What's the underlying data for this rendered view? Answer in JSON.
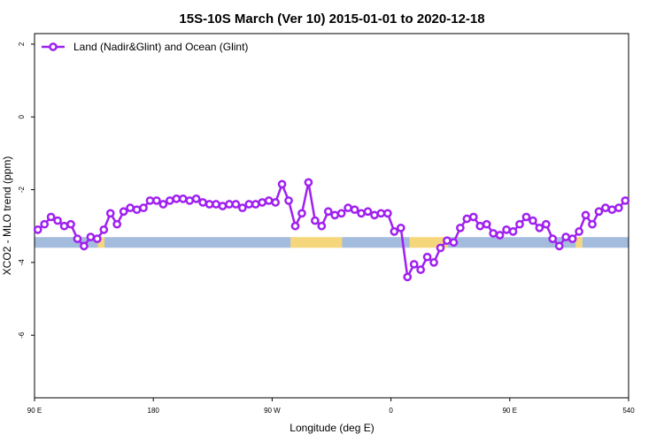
{
  "chart_data": {
    "type": "line",
    "title": "15S-10S March (Ver 10)   2015-01-01 to 2020-12-18",
    "x_label": "Longitude (deg E)",
    "y_label": "XCO2 - MLO trend (ppm)",
    "xlim": [
      90,
      540
    ],
    "ylim": [
      -7.72,
      2.29
    ],
    "xticks": [
      {
        "value": 90,
        "label": "90 E"
      },
      180,
      {
        "value": 270,
        "label": "90 W"
      },
      {
        "value": 360,
        "label": "0"
      },
      {
        "value": 450,
        "label": "90 E"
      },
      540
    ],
    "yticks": [
      2,
      0,
      -2,
      -4,
      -6
    ],
    "legend": "top-left",
    "x": [
      92.5,
      97.5,
      102.5,
      107.5,
      112.5,
      117.5,
      122.5,
      127.5,
      132.5,
      137.5,
      142.5,
      147.5,
      152.5,
      157.5,
      162.5,
      167.5,
      172.5,
      177.5,
      182.5,
      187.5,
      192.5,
      197.5,
      202.5,
      207.5,
      212.5,
      217.5,
      222.5,
      227.5,
      232.5,
      237.5,
      242.5,
      247.5,
      252.5,
      257.5,
      262.5,
      267.5,
      272.5,
      277.5,
      282.5,
      287.5,
      292.5,
      297.5,
      302.5,
      307.5,
      312.5,
      317.5,
      322.5,
      327.5,
      332.5,
      337.5,
      342.5,
      347.5,
      352.5,
      357.5,
      362.5,
      367.5,
      372.5,
      377.5,
      382.5,
      387.5,
      392.5,
      397.5,
      402.5,
      407.5,
      412.5,
      417.5,
      422.5,
      427.5,
      432.5,
      437.5,
      442.5,
      447.5,
      452.5,
      457.5,
      462.5,
      467.5,
      472.5,
      477.5,
      482.5,
      487.5,
      492.5,
      497.5,
      502.5,
      507.5,
      512.5,
      517.5,
      522.5,
      527.5,
      532.5,
      537.5
    ],
    "series": [
      {
        "name": "Land (Nadir&Glint) and Ocean (Glint)",
        "color": "#a020f0",
        "values": [
          -3.1,
          -2.95,
          -2.75,
          -2.85,
          -3.0,
          -2.95,
          -3.35,
          -3.55,
          -3.3,
          -3.35,
          -3.1,
          -2.65,
          -2.95,
          -2.6,
          -2.5,
          -2.55,
          -2.5,
          -2.3,
          -2.3,
          -2.4,
          -2.3,
          -2.25,
          -2.25,
          -2.3,
          -2.25,
          -2.35,
          -2.4,
          -2.4,
          -2.45,
          -2.4,
          -2.4,
          -2.5,
          -2.4,
          -2.4,
          -2.35,
          -2.3,
          -2.35,
          -1.85,
          -2.3,
          -3.0,
          -2.65,
          -1.8,
          -2.85,
          -3.0,
          -2.6,
          -2.7,
          -2.65,
          -2.5,
          -2.55,
          -2.65,
          -2.6,
          -2.7,
          -2.65,
          -2.65,
          -3.15,
          -3.05,
          -4.4,
          -4.05,
          -4.2,
          -3.85,
          -4.0,
          -3.6,
          -3.4,
          -3.45,
          -3.05,
          -2.8,
          -2.75,
          -3.0,
          -2.95,
          -3.2,
          -3.25,
          -3.1,
          -3.15,
          -2.95,
          -2.75,
          -2.85,
          -3.05,
          -2.95,
          -3.35,
          -3.55,
          -3.3,
          -3.35,
          -3.15,
          -2.7,
          -2.95,
          -2.6,
          -2.5,
          -2.55,
          -2.5,
          -2.3
        ]
      }
    ],
    "band_y": -3.45,
    "bands": [
      {
        "start": 90,
        "end": 138,
        "color": "#a3bbdc"
      },
      {
        "start": 138,
        "end": 143,
        "color": "#f5d67a"
      },
      {
        "start": 143,
        "end": 284,
        "color": "#a3bbdc"
      },
      {
        "start": 284,
        "end": 323,
        "color": "#f5d67a"
      },
      {
        "start": 323,
        "end": 374,
        "color": "#a3bbdc"
      },
      {
        "start": 374,
        "end": 403,
        "color": "#f5d67a"
      },
      {
        "start": 403,
        "end": 500,
        "color": "#a3bbdc"
      },
      {
        "start": 500,
        "end": 505,
        "color": "#f5d67a"
      },
      {
        "start": 505,
        "end": 540,
        "color": "#a3bbdc"
      }
    ]
  }
}
